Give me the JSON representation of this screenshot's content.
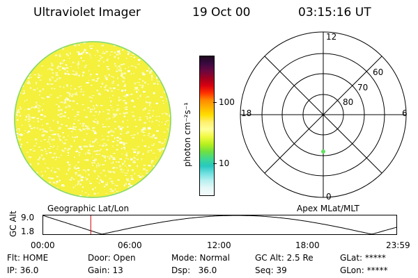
{
  "header": {
    "title": "Ultraviolet Imager",
    "date": "19 Oct 00",
    "time": "03:15:16 UT"
  },
  "image": {
    "fill_color": "#f4f03c",
    "speckle_color": "#fafab4",
    "rim_color": "#7fd87f"
  },
  "colorbar": {
    "unit_label": "photon cm⁻²s⁻¹",
    "ticks": [
      "100",
      "10"
    ],
    "colors": [
      "#200820",
      "#3a0a40",
      "#6a0840",
      "#a00020",
      "#d80010",
      "#ff3000",
      "#ff8a00",
      "#ffb400",
      "#ffde00",
      "#fff070",
      "#ffff9a",
      "#f0fa40",
      "#b8f020",
      "#70e040",
      "#40d890",
      "#28c8c0",
      "#70e0e0",
      "#b8f0f0",
      "#e6f8f8",
      "#f4fbfb"
    ]
  },
  "polar": {
    "mlt_labels": {
      "top": "12",
      "left": "18",
      "right": "6",
      "bottom": "0"
    },
    "lat_labels": [
      "60",
      "70",
      "80"
    ],
    "marker_color": "#60e060"
  },
  "timeline": {
    "left_title": "Geographic Lat/Lon",
    "right_title": "Apex MLat/MLT",
    "ylabel": "GC Alt",
    "ymax": "9.0",
    "ymin": "1.8",
    "xticks": [
      "00:00",
      "06:00",
      "12:00",
      "18:00",
      "23:59"
    ],
    "current_time_hours": 3.25,
    "current_color": "#cc0000"
  },
  "info": {
    "row1": {
      "flt": "Flt: HOME",
      "door": "Door: Open",
      "mode": "Mode: Normal",
      "gcalt": "GC Alt: 2.5 Re",
      "glat": "GLat: *****"
    },
    "row2": {
      "ip": "IP: 36.0",
      "gain": "Gain: 13",
      "dsp": "Dsp:   36.0",
      "seq": "Seq: 39",
      "glon": "GLon: *****"
    }
  }
}
